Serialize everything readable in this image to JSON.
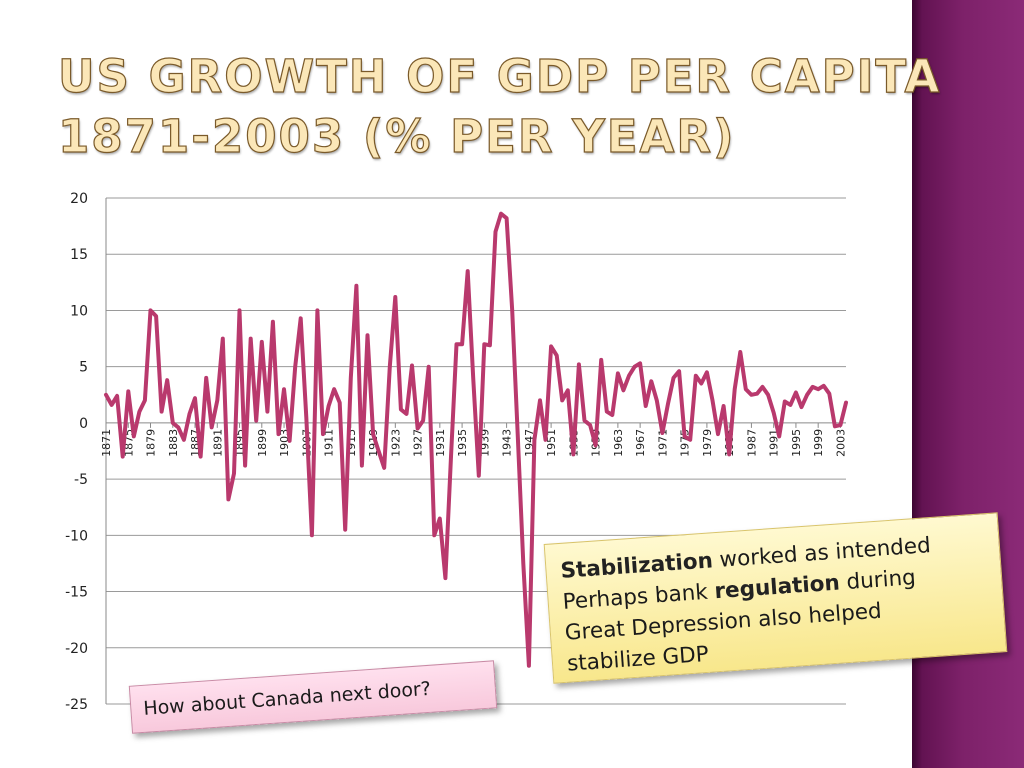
{
  "title": {
    "line1": "US GROWTH OF GDP PER CAPITA",
    "line2": "1871-2003 (% PER YEAR)"
  },
  "colors": {
    "series": "#b9396d",
    "title_fill": "#fbe7b8",
    "side_band": "#7d2169",
    "callout_yellow": "#f8e78c",
    "callout_pink": "#f8c9dc"
  },
  "chart_data": {
    "type": "line",
    "title": "US Growth of GDP per capita 1871-2003 (% per year)",
    "xlabel": "",
    "ylabel": "",
    "ylim": [
      -25,
      20
    ],
    "yticks": [
      "20",
      "15",
      "10",
      "5",
      "0",
      "-5",
      "-10",
      "-15",
      "-20",
      "-25"
    ],
    "xticks": [
      "1871",
      "1875",
      "1879",
      "1883",
      "1887",
      "1891",
      "1895",
      "1899",
      "1903",
      "1907",
      "1911",
      "1915",
      "1919",
      "1923",
      "1927",
      "1931",
      "1935",
      "1939",
      "1943",
      "1947",
      "1951",
      "1955",
      "1959",
      "1963",
      "1967",
      "1971",
      "1975",
      "1979",
      "1983",
      "1987",
      "1991",
      "1995",
      "1999",
      "2003"
    ],
    "grid": true,
    "legend": "none",
    "series": [
      {
        "name": "US GDP per capita growth (%)",
        "x_start": 1871,
        "values": [
          2.5,
          1.6,
          2.4,
          -3.0,
          2.8,
          -1.2,
          1.0,
          2.0,
          10.0,
          9.5,
          1.0,
          3.8,
          0.0,
          -0.4,
          -1.5,
          0.8,
          2.2,
          -3.0,
          4.0,
          -0.4,
          2.0,
          7.5,
          -6.8,
          -4.5,
          10.0,
          -3.8,
          7.5,
          0.2,
          7.2,
          1.0,
          9.0,
          -1.0,
          3.0,
          -1.6,
          5.0,
          9.3,
          0.5,
          -10.0,
          10.0,
          -1.0,
          1.5,
          3.0,
          1.8,
          -9.5,
          4.0,
          12.2,
          -3.8,
          7.8,
          -1.0,
          -2.5,
          -4.0,
          5.0,
          11.2,
          1.2,
          0.8,
          5.1,
          -0.5,
          0.2,
          5.0,
          -10.0,
          -8.5,
          -13.8,
          -3.0,
          7.0,
          7.0,
          13.5,
          4.0,
          -4.7,
          7.0,
          6.9,
          17.0,
          18.6,
          18.2,
          10.0,
          -1.0,
          -12.5,
          -21.6,
          -1.5,
          2.0,
          -1.5,
          6.8,
          6.0,
          2.0,
          2.9,
          -2.8,
          5.2,
          0.2,
          -0.2,
          -2.0,
          5.6,
          1.0,
          0.7,
          4.4,
          2.9,
          4.2,
          5.0,
          5.3,
          1.5,
          3.7,
          2.0,
          -0.9,
          1.7,
          4.0,
          4.6,
          -1.2,
          -1.5,
          4.2,
          3.5,
          4.5,
          2.0,
          -1.0,
          1.5,
          -2.8,
          3.0,
          6.3,
          3.0,
          2.5,
          2.6,
          3.2,
          2.5,
          0.9,
          -1.2,
          1.9,
          1.6,
          2.7,
          1.4,
          2.5,
          3.2,
          3.0,
          3.3,
          2.6,
          -0.3,
          -0.2,
          1.8
        ]
      }
    ]
  },
  "callouts": {
    "stabilization": {
      "line1_bold": "Stabilization",
      "line1_rest": " worked as intended",
      "line2_pre": "Perhaps bank ",
      "line2_bold": "regulation",
      "line2_post": " during",
      "line3": "Great Depression also helped",
      "line4": "stabilize GDP"
    },
    "canada": "How about Canada next door?"
  }
}
